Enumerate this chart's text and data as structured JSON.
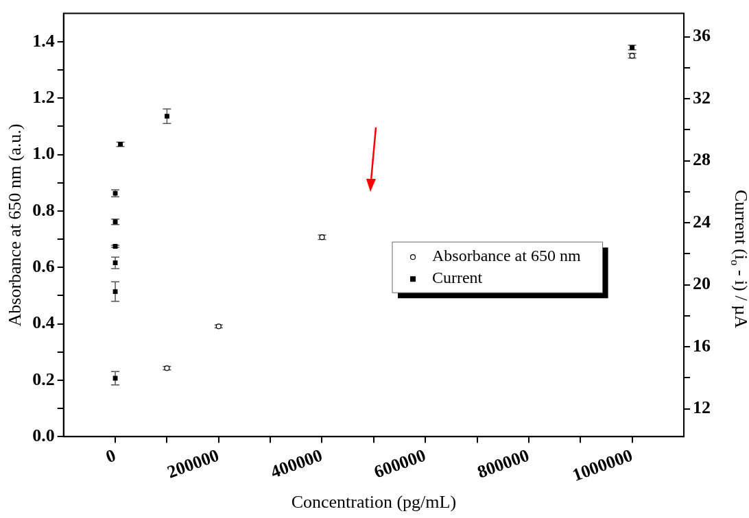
{
  "chart_data": {
    "type": "scatter",
    "xlabel": "Concentration (pg/mL)",
    "ylabel": "Absorbance at 650 nm (a.u.)",
    "y2label": "Current (i$_{o}$ - i) / µA",
    "xlim": [
      -100000,
      1100000
    ],
    "xticks": [
      0,
      {
        "value": 100000,
        "label": null
      },
      200000,
      {
        "value": 300000,
        "label": null
      },
      400000,
      {
        "value": 500000,
        "label": null
      },
      600000,
      {
        "value": 700000,
        "label": null
      },
      800000,
      {
        "value": 900000,
        "label": null
      },
      1000000
    ],
    "ylim": [
      0,
      1.5
    ],
    "yticks": [
      {
        "value": 0,
        "label": "0.0"
      },
      {
        "value": 0.1,
        "label": null
      },
      0.2,
      {
        "value": 0.3,
        "label": null
      },
      0.4,
      {
        "value": 0.5,
        "label": null
      },
      0.6,
      {
        "value": 0.7,
        "label": null
      },
      0.8,
      {
        "value": 0.9,
        "label": null
      },
      {
        "value": 1,
        "label": "1.0"
      },
      {
        "value": 1.1,
        "label": null
      },
      1.2,
      {
        "value": 1.3,
        "label": null
      },
      1.4
    ],
    "y2lim": [
      10.2,
      37.5
    ],
    "y2ticks": [
      12,
      {
        "value": 14,
        "label": null
      },
      16,
      {
        "value": 18,
        "label": null
      },
      20,
      {
        "value": 22,
        "label": null
      },
      24,
      {
        "value": 26,
        "label": null
      },
      28,
      {
        "value": 30,
        "label": null
      },
      32,
      {
        "value": 34,
        "label": null
      },
      36
    ],
    "grid": false,
    "legend": "right",
    "series": [
      {
        "name": "Absorbance at 650 nm",
        "color": "#000000",
        "marker": "circle",
        "x": [
          100000,
          200000,
          400000,
          1000000
        ],
        "values": [
          0.243,
          0.391,
          0.707,
          1.35
        ],
        "errors": [
          0.006,
          0.005,
          0.008,
          0.008
        ]
      },
      {
        "name": "Current",
        "color": "#000000",
        "marker": "square",
        "axis": "y2",
        "x": [
          0,
          0,
          0,
          0,
          0,
          0,
          10000,
          100000,
          1000000
        ],
        "values": [
          13.97,
          19.56,
          21.41,
          22.48,
          24.06,
          25.9,
          29.06,
          30.87,
          35.3
        ],
        "errors": [
          0.43,
          0.63,
          0.37,
          0.07,
          0.18,
          0.23,
          0.14,
          0.47,
          0.15
        ]
      }
    ]
  }
}
